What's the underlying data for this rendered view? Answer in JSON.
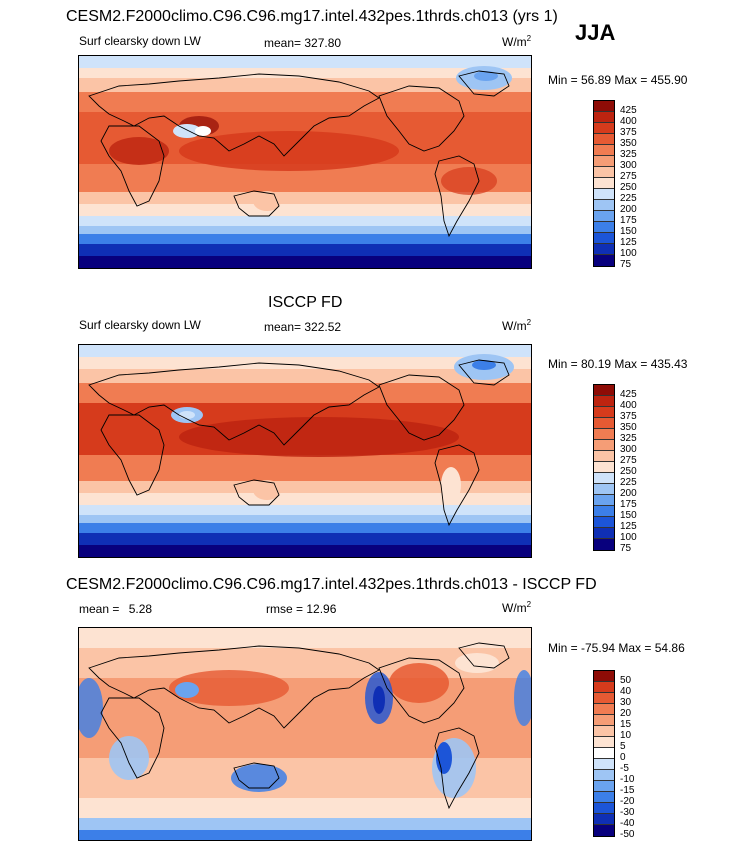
{
  "header": {
    "title": "CESM2.F2000climo.C96.C96.mg17.intel.432pes.1thrds.ch013 (yrs 1)",
    "season": "JJA"
  },
  "colors": {
    "abs_scale": [
      "#08007d",
      "#0f2fb5",
      "#1c55d8",
      "#3c7fe8",
      "#6aa3ef",
      "#9ec5f4",
      "#cfe3fa",
      "#fde3d2",
      "#fbc4a6",
      "#f59d76",
      "#f07c52",
      "#e65a33",
      "#d63b1c",
      "#bd2410",
      "#8e0c06"
    ],
    "diff_scale": [
      "#08007d",
      "#0f2fb5",
      "#1c55d8",
      "#3c7fe8",
      "#6aa3ef",
      "#9ec5f4",
      "#cfe3fa",
      "#ffffff",
      "#fde3d2",
      "#fbc4a6",
      "#f59d76",
      "#f07c52",
      "#e65a33",
      "#d63b1c",
      "#8e0c06"
    ],
    "land": "#000000"
  },
  "panels": [
    {
      "id": "model",
      "var_label": "Surf clearsky down LW",
      "mean_label": "mean=",
      "mean_value": "327.80",
      "units": "W/m",
      "units_sup": "2",
      "minmax": "Min =  56.89 Max = 455.90",
      "ticks": [
        "425",
        "400",
        "375",
        "350",
        "325",
        "300",
        "275",
        "250",
        "225",
        "200",
        "175",
        "150",
        "125",
        "100",
        "75"
      ]
    },
    {
      "id": "obs",
      "heading": "ISCCP FD",
      "var_label": "Surf clearsky down LW",
      "mean_label": "mean=",
      "mean_value": "322.52",
      "units": "W/m",
      "units_sup": "2",
      "minmax": "Min =  80.19 Max = 435.43",
      "ticks": [
        "425",
        "400",
        "375",
        "350",
        "325",
        "300",
        "275",
        "250",
        "225",
        "200",
        "175",
        "150",
        "125",
        "100",
        "75"
      ]
    },
    {
      "id": "diff",
      "heading": "CESM2.F2000climo.C96.C96.mg17.intel.432pes.1thrds.ch013 - ISCCP FD",
      "mean_label": "mean =",
      "mean_value": "5.28",
      "rmse_label": "rmse =",
      "rmse_value": "12.96",
      "units": "W/m",
      "units_sup": "2",
      "minmax": "Min = -75.94 Max =  54.86",
      "ticks": [
        "50",
        "40",
        "30",
        "20",
        "15",
        "10",
        "5",
        "0",
        "-5",
        "-10",
        "-15",
        "-20",
        "-30",
        "-40",
        "-50"
      ]
    }
  ]
}
